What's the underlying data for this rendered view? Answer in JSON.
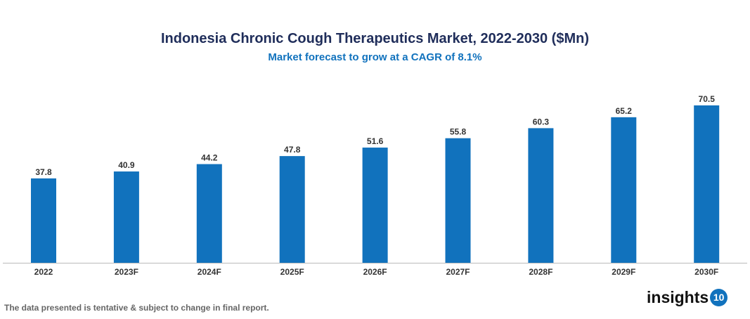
{
  "chart_data": {
    "type": "bar",
    "title": "Indonesia Chronic Cough Therapeutics Market, 2022-2030 ($Mn)",
    "subtitle": "Market forecast to grow at a CAGR of 8.1%",
    "categories": [
      "2022",
      "2023F",
      "2024F",
      "2025F",
      "2026F",
      "2027F",
      "2028F",
      "2029F",
      "2030F"
    ],
    "values": [
      37.8,
      40.9,
      44.2,
      47.8,
      51.6,
      55.8,
      60.3,
      65.2,
      70.5
    ],
    "xlabel": "",
    "ylabel": "",
    "ylim": [
      0,
      70.5
    ],
    "grid": false,
    "bar_color": "#1172bd",
    "title_color": "#1f2d5a",
    "subtitle_color": "#1172bd"
  },
  "footer": {
    "note": "The data presented is tentative & subject to change in final report.",
    "logo_text": "insights",
    "logo_number": "10"
  }
}
